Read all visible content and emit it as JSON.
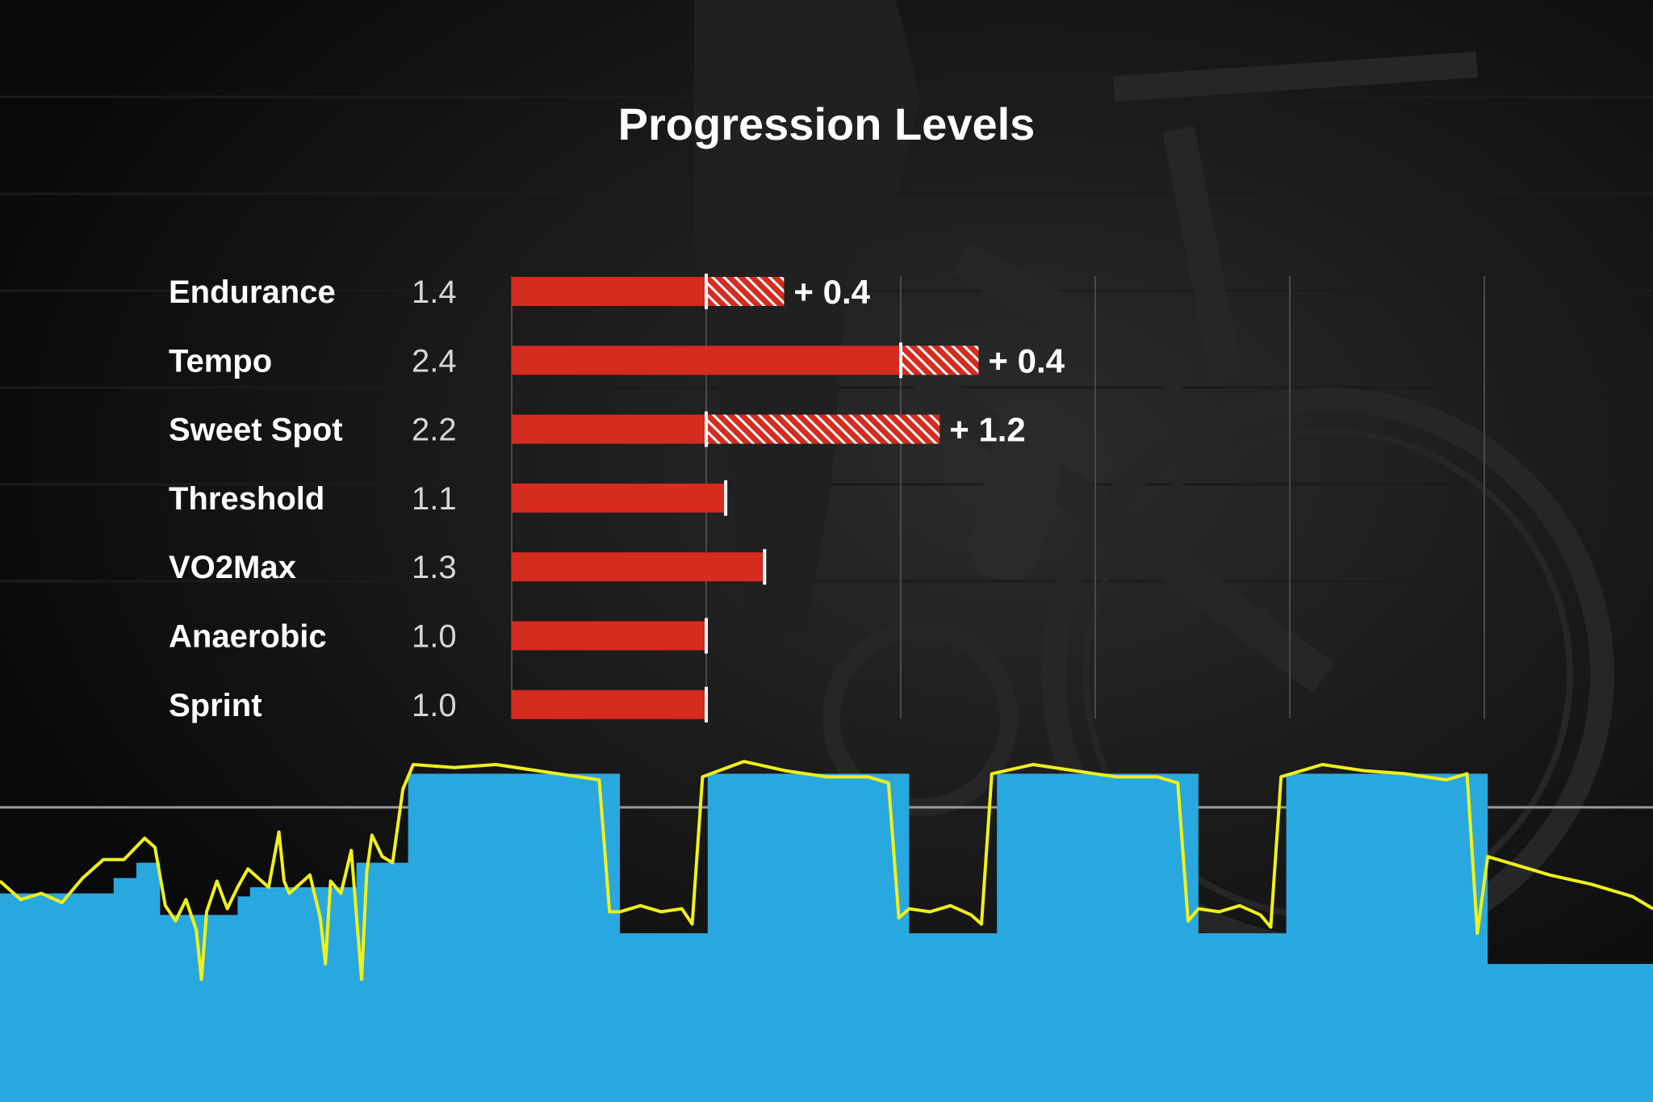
{
  "chart_data": [
    {
      "type": "bar",
      "title": "Progression Levels",
      "categories": [
        "Endurance",
        "Tempo",
        "Sweet Spot",
        "Threshold",
        "VO2Max",
        "Anaerobic",
        "Sprint"
      ],
      "values": [
        1.4,
        2.4,
        2.2,
        1.1,
        1.3,
        1.0,
        1.0
      ],
      "value_labels": [
        "1.4",
        "2.4",
        "2.2",
        "1.1",
        "1.3",
        "1.0",
        "1.0"
      ],
      "bar_levels": [
        1.0,
        2.0,
        1.0,
        1.1,
        1.3,
        1.0,
        1.0
      ],
      "increments": [
        0.4,
        0.4,
        1.2,
        null,
        null,
        null,
        null
      ],
      "increment_labels": [
        "+ 0.4",
        "+ 0.4",
        "+ 1.2",
        "",
        "",
        "",
        ""
      ],
      "xlim": [
        0,
        6
      ],
      "grid": true,
      "bar_color": "#d62b1f",
      "marker_color": "#ffffff"
    },
    {
      "type": "area",
      "series": [
        {
          "kind": "workout-target",
          "color": "#29a8e0",
          "x": [
            0,
            4,
            9,
            11,
            13.2,
            15.5,
            16.5,
            23,
            24.2,
            30,
            34.5,
            38,
            39.5,
            58,
            60,
            66.5,
            68.5,
            86,
            88,
            94.5,
            96.5,
            114,
            116,
            122.5,
            124.5,
            142,
            144,
            160
          ],
          "values": [
            0.68,
            0.68,
            0.68,
            0.73,
            0.78,
            0.61,
            0.61,
            0.67,
            0.7,
            0.7,
            0.78,
            0.78,
            1.07,
            1.07,
            0.55,
            0.55,
            1.07,
            1.07,
            0.55,
            0.55,
            1.07,
            1.07,
            0.55,
            0.55,
            1.07,
            1.07,
            0.45,
            0.38
          ]
        },
        {
          "kind": "actual-power",
          "color": "#f0f01c",
          "x": [
            0,
            2,
            4,
            6,
            8,
            10,
            12,
            14,
            15,
            16,
            17,
            18,
            19,
            19.5,
            20,
            21,
            22,
            23,
            24,
            26,
            27,
            27.5,
            28,
            29,
            30,
            31,
            31.5,
            32,
            33,
            34,
            35,
            35.5,
            36,
            37,
            38,
            39,
            40,
            44,
            48,
            52,
            56,
            58,
            59,
            60,
            62,
            64,
            66,
            67,
            68,
            72,
            76,
            80,
            84,
            86,
            87,
            88,
            90,
            92,
            94,
            95,
            96,
            100,
            104,
            108,
            112,
            114,
            115,
            116,
            118,
            120,
            122,
            123,
            124,
            128,
            132,
            136,
            140,
            142,
            143,
            144,
            146,
            150,
            154,
            158,
            160
          ],
          "values": [
            0.72,
            0.66,
            0.68,
            0.65,
            0.73,
            0.79,
            0.79,
            0.86,
            0.83,
            0.64,
            0.59,
            0.66,
            0.56,
            0.4,
            0.62,
            0.72,
            0.63,
            0.7,
            0.76,
            0.7,
            0.88,
            0.72,
            0.68,
            0.71,
            0.74,
            0.6,
            0.45,
            0.72,
            0.68,
            0.82,
            0.4,
            0.75,
            0.87,
            0.8,
            0.78,
            1.02,
            1.1,
            1.09,
            1.1,
            1.08,
            1.06,
            1.05,
            0.62,
            0.62,
            0.64,
            0.62,
            0.63,
            0.58,
            1.06,
            1.11,
            1.08,
            1.06,
            1.06,
            1.04,
            0.6,
            0.63,
            0.62,
            0.64,
            0.61,
            0.58,
            1.07,
            1.1,
            1.08,
            1.06,
            1.06,
            1.04,
            0.59,
            0.63,
            0.62,
            0.64,
            0.61,
            0.57,
            1.06,
            1.1,
            1.08,
            1.07,
            1.05,
            1.07,
            0.55,
            0.8,
            0.78,
            0.74,
            0.71,
            0.67,
            0.63
          ]
        }
      ],
      "xlim": [
        0,
        160
      ],
      "ylim": [
        0,
        1.3
      ],
      "grid": false
    }
  ]
}
